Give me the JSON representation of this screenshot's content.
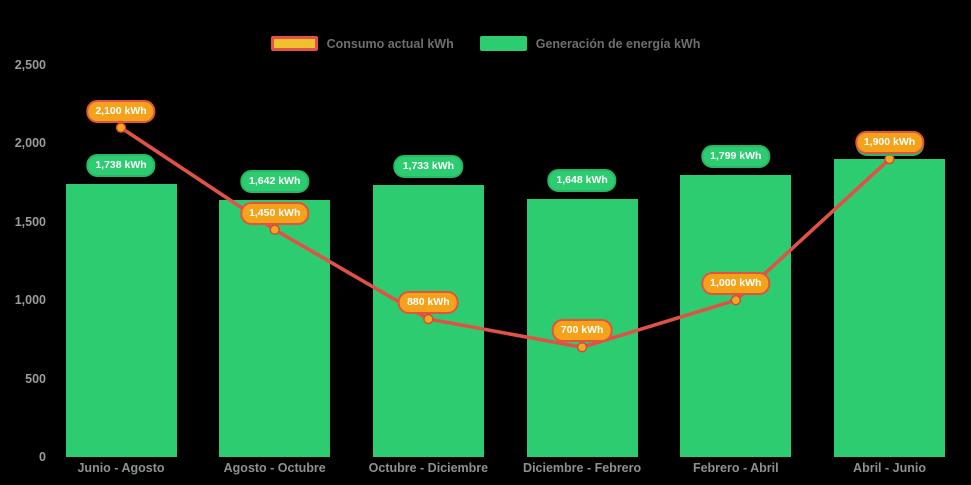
{
  "chart_data": {
    "type": "combo",
    "title": "",
    "categories": [
      "Junio - Agosto",
      "Agosto - Octubre",
      "Octubre - Diciembre",
      "Diciembre - Febrero",
      "Febrero - Abril",
      "Abril - Junio"
    ],
    "series": [
      {
        "name": "Consumo actual kWh",
        "type": "line",
        "values": [
          2100,
          1450,
          880,
          700,
          1000,
          1900
        ],
        "labels": [
          "2,100 kWh",
          "1,450 kWh",
          "880 kWh",
          "700 kWh",
          "1,000 kWh",
          "1,900 kWh"
        ]
      },
      {
        "name": "Generación de energía kWh",
        "type": "bar",
        "values": [
          1738,
          1642,
          1733,
          1648,
          1799,
          1900
        ],
        "labels": [
          "1,738 kWh",
          "1,642 kWh",
          "1,733 kWh",
          "1,648 kWh",
          "1,799 kWh",
          ""
        ]
      }
    ],
    "xlabel": "",
    "ylabel": "",
    "ylim": [
      0,
      2500
    ],
    "y_ticks": [
      "2,500",
      "2,000",
      "1,500",
      "1,000",
      "500",
      "0"
    ],
    "y_tick_values": [
      2500,
      2000,
      1500,
      1000,
      500,
      0
    ],
    "grid": false,
    "legend_position": "top"
  },
  "colors": {
    "background": "#000000",
    "bar": "#2ecc71",
    "generation_badge_border": "#28b765",
    "line": "#e05246",
    "marker_fill": "#f3a81d",
    "marker_stroke": "#d8453a",
    "consumption_badge_fill": "#f5a21b",
    "consumption_badge_border": "#e4533f",
    "legend_consumo_swatch_fill": "#f0c02f",
    "legend_consumo_swatch_border": "#e4533f",
    "badge_text": "#ffffff",
    "axis_label": "#9b9b9b",
    "category_label": "#8d9093",
    "legend_text": "#6e6e6e"
  }
}
